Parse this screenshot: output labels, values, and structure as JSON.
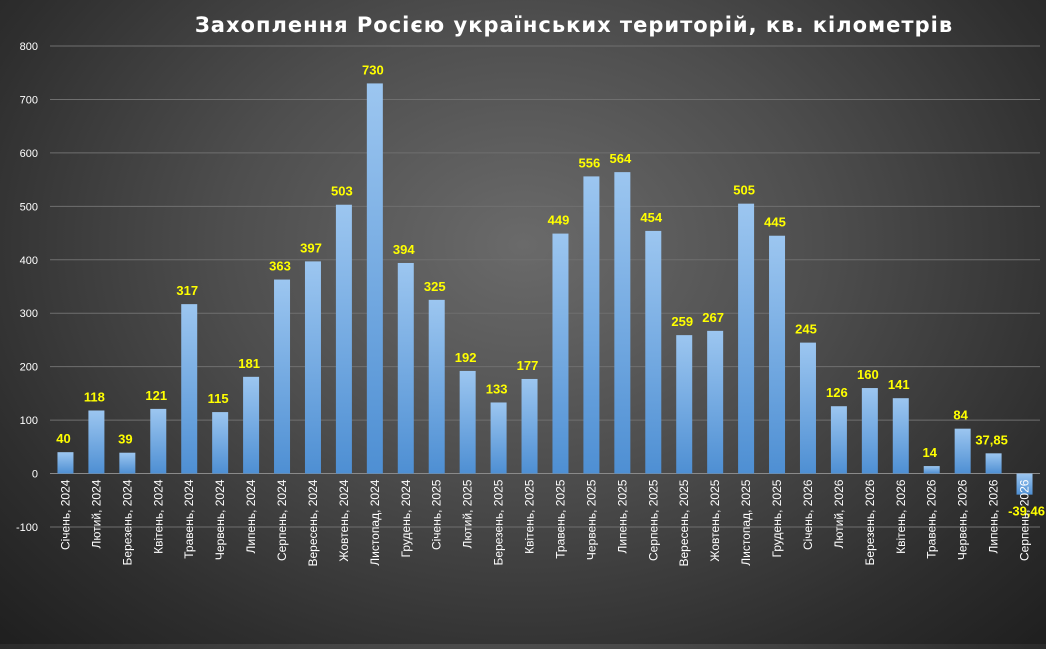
{
  "chart_data": {
    "type": "bar",
    "title": "Захоплення Росією українських територій,  кв. кілометрів",
    "xlabel": "",
    "ylabel": "",
    "ylim": [
      -100,
      800
    ],
    "y_ticks": [
      -100,
      0,
      100,
      200,
      300,
      400,
      500,
      600,
      700,
      800
    ],
    "grid": true,
    "legend": "none",
    "bar_color": "#4e8fd3",
    "bar_color_light": "#9cc6f0",
    "label_color": "#ffff00",
    "categories": [
      "Січень, 2024",
      "Лютий, 2024",
      "Березень, 2024",
      "Квітень, 2024",
      "Травень, 2024",
      "Червень, 2024",
      "Липень, 2024",
      "Серпень, 2024",
      "Вересень, 2024",
      "Жовтень, 2024",
      "Листопад, 2024",
      "Грудень, 2024",
      "Січень, 2025",
      "Лютий, 2025",
      "Березень, 2025",
      "Квітень, 2025",
      "Травень, 2025",
      "Червень, 2025",
      "Липень, 2025",
      "Серпень, 2025",
      "Вересень, 2025",
      "Жовтень, 2025",
      "Листопад, 2025",
      "Грудень, 2025",
      "Січень, 2026",
      "Лютий, 2026",
      "Березень, 2026",
      "Квітень, 2026",
      "Травень, 2026",
      "Червень, 2026",
      "Липень, 2026",
      "Серпень, 2026"
    ],
    "values": [
      40,
      118,
      39,
      121,
      317,
      115,
      181,
      363,
      397,
      503,
      730,
      394,
      325,
      192,
      133,
      177,
      449,
      556,
      564,
      454,
      259,
      267,
      505,
      445,
      245,
      126,
      160,
      141,
      14,
      84,
      37.85,
      -39.46
    ],
    "value_labels": [
      "40",
      "118",
      "39",
      "121",
      "317",
      "115",
      "181",
      "363",
      "397",
      "503",
      "730",
      "394",
      "325",
      "192",
      "133",
      "177",
      "449",
      "556",
      "564",
      "454",
      "259",
      "267",
      "505",
      "445",
      "245",
      "126",
      "160",
      "141",
      "14",
      "84",
      "37,85",
      "-39,46"
    ]
  }
}
